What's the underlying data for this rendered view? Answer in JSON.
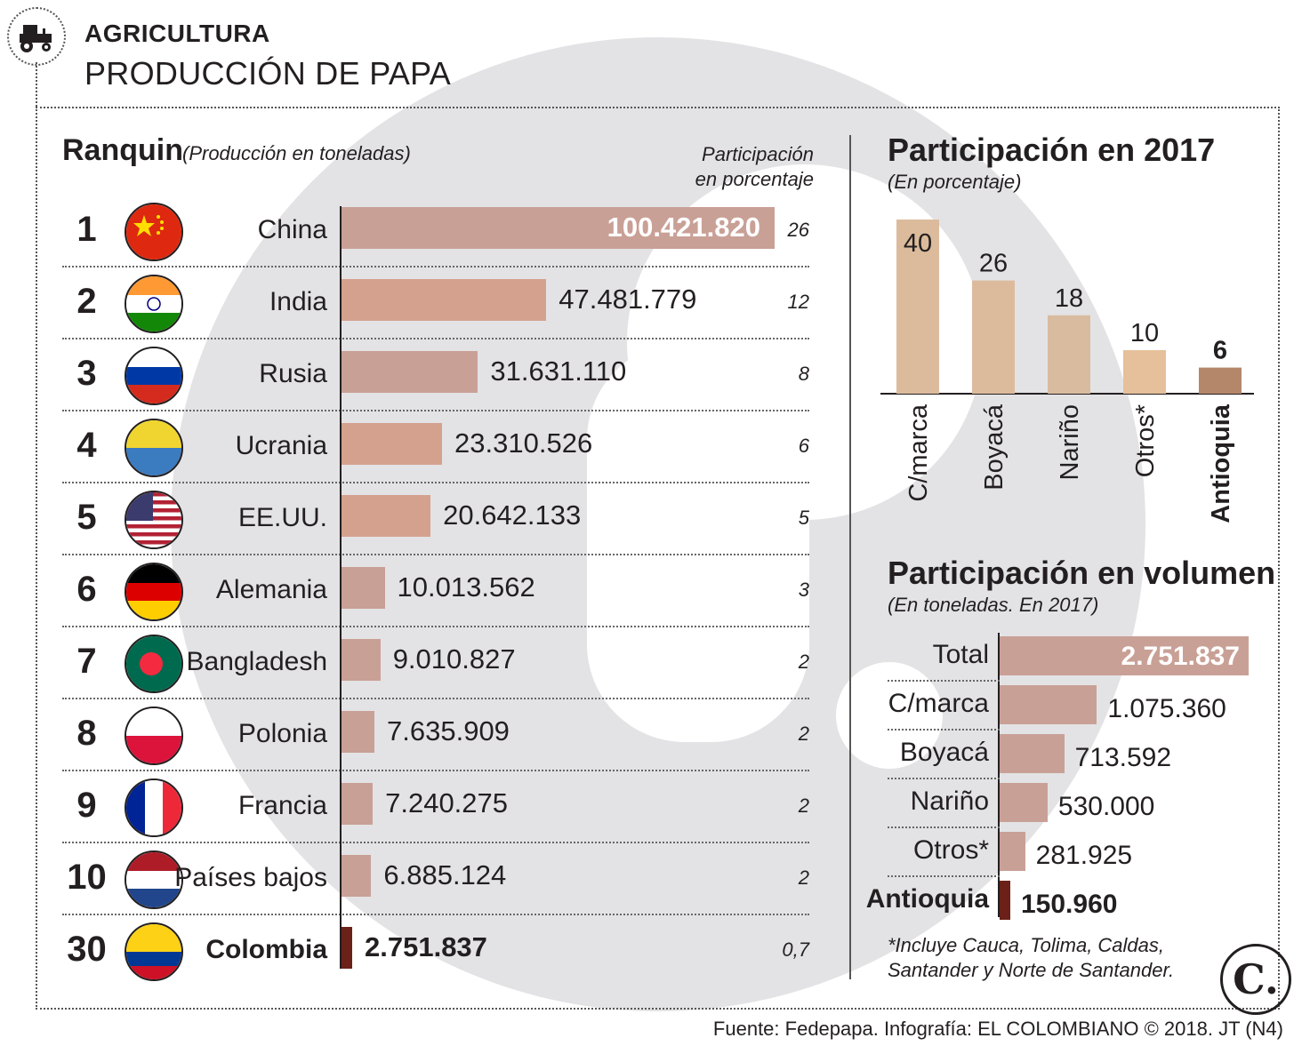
{
  "header": {
    "section": "AGRICULTURA",
    "title": "PRODUCCIÓN DE PAPA",
    "icon": "tractor-icon"
  },
  "ranking": {
    "title": "Ranquin",
    "subtitle": "(Producción en toneladas)",
    "share_header_line1": "Participación",
    "share_header_line2": "en porcentaje"
  },
  "chart_data": [
    {
      "type": "bar",
      "orientation": "horizontal",
      "title": "Ranquin",
      "subtitle": "(Producción en toneladas)",
      "ranks": [
        "1",
        "2",
        "3",
        "4",
        "5",
        "6",
        "7",
        "8",
        "9",
        "10",
        "30"
      ],
      "categories": [
        "China",
        "India",
        "Rusia",
        "Ucrania",
        "EE.UU.",
        "Alemania",
        "Bangladesh",
        "Polonia",
        "Francia",
        "Países bajos",
        "Colombia"
      ],
      "values": [
        100421820,
        47481779,
        31631110,
        23310526,
        20642133,
        10013562,
        9010827,
        7635909,
        7240275,
        6885124,
        2751837
      ],
      "value_labels": [
        "100.421.820",
        "47.481.779",
        "31.631.110",
        "23.310.526",
        "20.642.133",
        "10.013.562",
        "9.010.827",
        "7.635.909",
        "7.240.275",
        "6.885.124",
        "2.751.837"
      ],
      "share_labels": [
        "26",
        "12",
        "8",
        "6",
        "5",
        "3",
        "2",
        "2",
        "2",
        "2",
        "0,7"
      ],
      "highlight": "Colombia",
      "colors": {
        "bar": "#c9a096",
        "bar_mid": "#d4a18f",
        "highlight": "#6b2118"
      }
    },
    {
      "type": "bar",
      "orientation": "vertical",
      "title": "Participación en 2017",
      "subtitle": "(En porcentaje)",
      "categories": [
        "C/marca",
        "Boyacá",
        "Nariño",
        "Otros*",
        "Antioquia"
      ],
      "values": [
        40,
        26,
        18,
        10,
        6
      ],
      "value_labels": [
        "40",
        "26",
        "18",
        "10",
        "6"
      ],
      "highlight": "Antioquia",
      "colors": {
        "bars": [
          "#dcbb9d",
          "#dcbb9d",
          "#d9bb9f",
          "#e6c09a",
          "#b5876a"
        ]
      }
    },
    {
      "type": "bar",
      "orientation": "horizontal",
      "title": "Participación en volumen",
      "subtitle": "(En toneladas. En 2017)",
      "categories": [
        "Total",
        "C/marca",
        "Boyacá",
        "Nariño",
        "Otros*",
        "Antioquia"
      ],
      "values": [
        2751837,
        1075360,
        713592,
        530000,
        281925,
        150960
      ],
      "value_labels": [
        "2.751.837",
        "1.075.360",
        "713.592",
        "530.000",
        "281.925",
        "150.960"
      ],
      "highlight": "Antioquia",
      "colors": {
        "bar": "#c9a096",
        "highlight": "#6b2118"
      }
    }
  ],
  "footnote": {
    "line1": "*Incluye Cauca, Tolima, Caldas,",
    "line2": "Santander y Norte de Santander."
  },
  "source": "Fuente: Fedepapa. Infografía: EL COLOMBIANO © 2018. JT (N4)",
  "logo": "C."
}
